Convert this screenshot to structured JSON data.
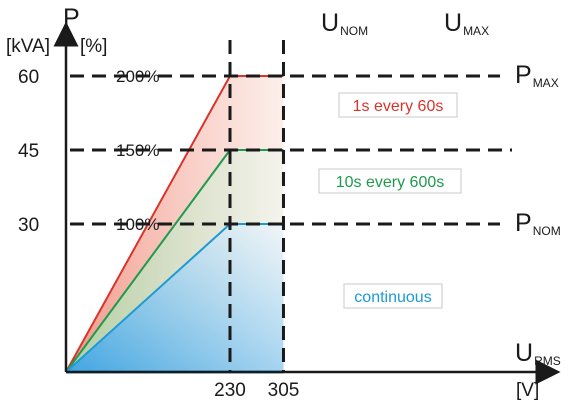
{
  "chart_data": {
    "type": "area",
    "x_axis": {
      "symbol": "U",
      "subscript": "RMS",
      "unit": "[V]",
      "ticks": [
        230,
        305
      ],
      "lim": [
        0,
        340
      ]
    },
    "y_axis": {
      "symbol": "P",
      "units": [
        "[kVA]",
        "[%]"
      ],
      "ticks": [
        30,
        45,
        60
      ],
      "percent_ticks": [
        "100%",
        "150%",
        "200%"
      ],
      "lim": [
        0,
        72
      ]
    },
    "reference_lines": {
      "u_nom": {
        "symbol": "U",
        "subscript": "NOM",
        "x": 230
      },
      "u_max": {
        "symbol": "U",
        "subscript": "MAX",
        "x": 305
      },
      "p_nom": {
        "symbol": "P",
        "subscript": "NOM",
        "y": 30
      },
      "p_max": {
        "symbol": "P",
        "subscript": "MAX",
        "y": 60
      }
    },
    "series": [
      {
        "name": "1s every 60s",
        "color": "#d9342b",
        "fill": "#f3b3a8",
        "x": [
          0,
          230,
          305
        ],
        "y": [
          0,
          60,
          60
        ]
      },
      {
        "name": "10s every 600s",
        "color": "#1f9a4e",
        "fill": "#c7e5c6",
        "x": [
          0,
          230,
          305
        ],
        "y": [
          0,
          45,
          45
        ]
      },
      {
        "name": "continuous",
        "color": "#1d9ad6",
        "fill": "#bfdff4",
        "x": [
          0,
          230,
          305
        ],
        "y": [
          0,
          30,
          30
        ]
      }
    ]
  }
}
